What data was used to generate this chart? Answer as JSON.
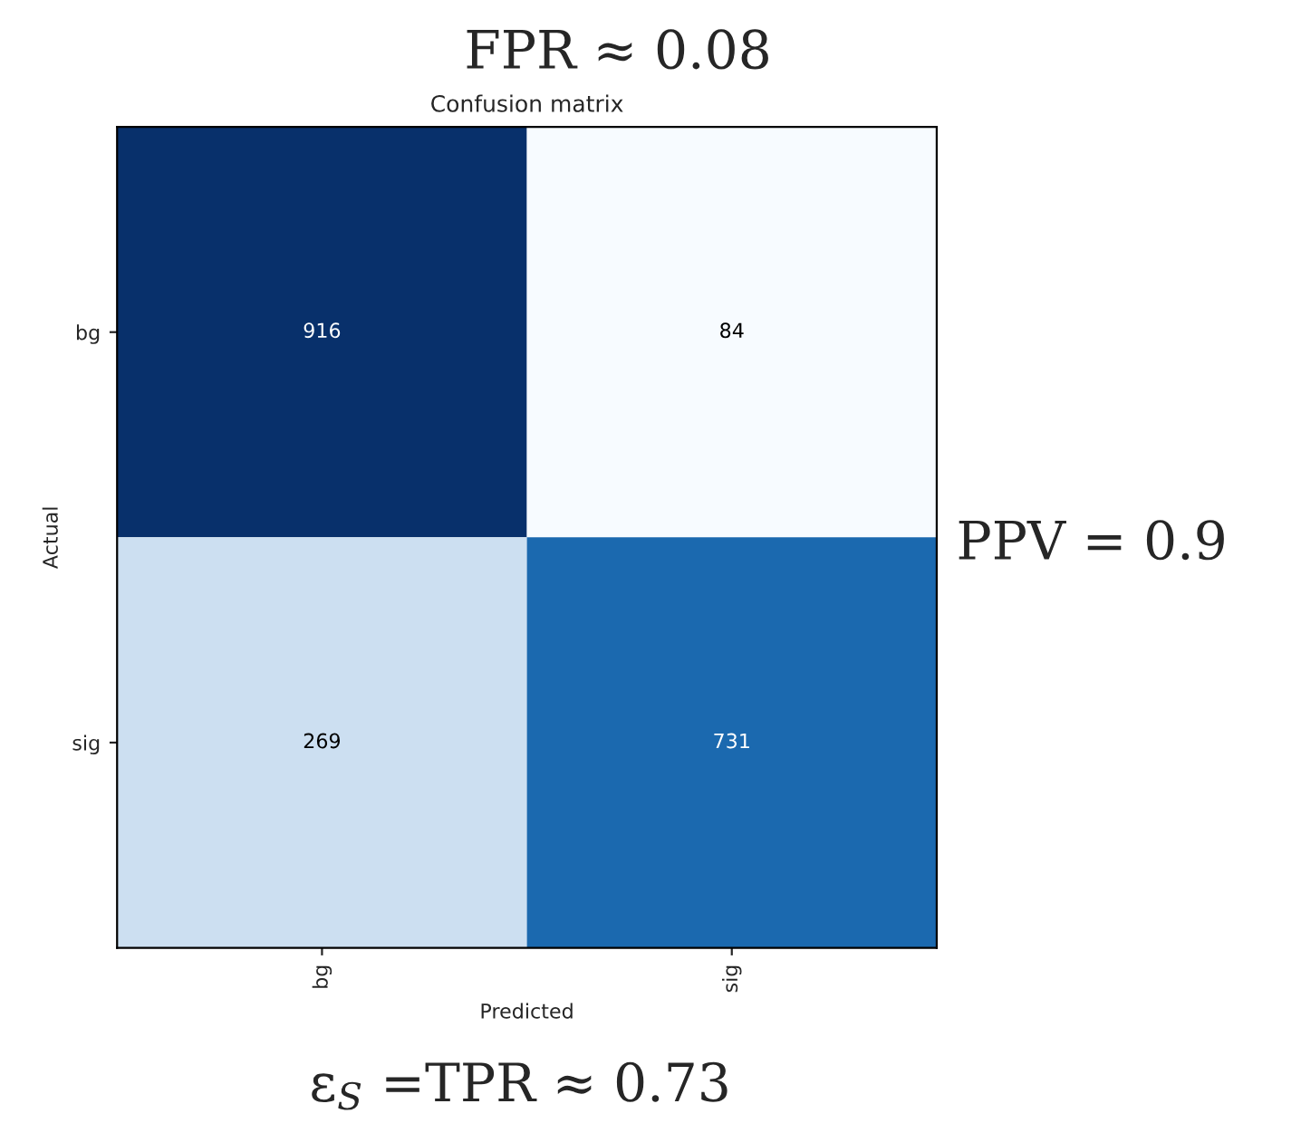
{
  "chart_data": {
    "type": "heatmap",
    "title": "Confusion matrix",
    "xlabel": "Predicted",
    "ylabel": "Actual",
    "categories": [
      "bg",
      "sig"
    ],
    "y_categories": [
      "bg",
      "sig"
    ],
    "cells": [
      [
        916,
        84
      ],
      [
        269,
        731
      ]
    ],
    "data_labels": true,
    "annotations": [
      "FPR ≈ 0.08",
      "PPV = 0.9",
      "ε$_{S}$ =TPR ≈ 0.73"
    ]
  }
}
